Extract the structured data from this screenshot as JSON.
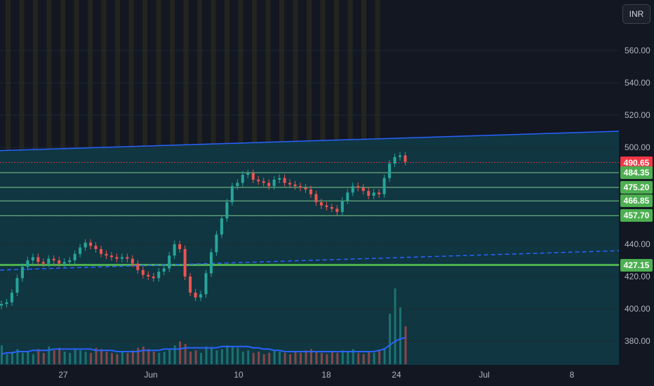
{
  "currency_button": "INR",
  "colors": {
    "background": "#121722",
    "channel_fill": "#0f3a44",
    "band_up": "#2a2a1c",
    "trendline": "#2962ff",
    "support_green": "#4caf50",
    "level_line": "#7fc98a",
    "up_candle": "#26a69a",
    "down_candle": "#ef5350",
    "volume_ma": "#2962ff",
    "current_price": "#f23645"
  },
  "price_labels": [
    {
      "price": 490.65,
      "text": "490.65",
      "color": "#f23645"
    },
    {
      "price": 484.35,
      "text": "484.35",
      "color": "#4caf50"
    },
    {
      "price": 475.2,
      "text": "475.20",
      "color": "#4caf50"
    },
    {
      "price": 466.85,
      "text": "466.85",
      "color": "#4caf50"
    },
    {
      "price": 457.7,
      "text": "457.70",
      "color": "#4caf50"
    },
    {
      "price": 427.15,
      "text": "427.15",
      "color": "#4caf50"
    }
  ],
  "chart_data": {
    "type": "candlestick",
    "y_axis": {
      "min": 370,
      "max": 580,
      "ticks": [
        "560.00",
        "540.00",
        "520.00",
        "500.00",
        "440.00",
        "420.00",
        "400.00",
        "380.00"
      ],
      "tick_values": [
        560,
        540,
        520,
        500,
        440,
        420,
        400,
        380
      ]
    },
    "x_axis": {
      "ticks": [
        {
          "label": "27",
          "day": 4
        },
        {
          "label": "Jun",
          "day": 9
        },
        {
          "label": "10",
          "day": 14
        },
        {
          "label": "18",
          "day": 19
        },
        {
          "label": "24",
          "day": 23
        },
        {
          "label": "Jul",
          "day": 28
        },
        {
          "label": "8",
          "day": 33
        }
      ]
    },
    "horizontal_levels": [
      484.35,
      475.2,
      466.85,
      457.7,
      427.15
    ],
    "current_price": 490.65,
    "upper_trendline": {
      "start": {
        "day": 0,
        "price": 498
      },
      "end": {
        "day": 36,
        "price": 510
      }
    },
    "lower_trendline": {
      "start": {
        "day": 0,
        "price": 424
      },
      "end": {
        "day": 36,
        "price": 436
      }
    },
    "closes": [
      403,
      404,
      410,
      419,
      426,
      430,
      432,
      429,
      428,
      431,
      430,
      428,
      429,
      430,
      434,
      438,
      441,
      439,
      437,
      434,
      433,
      432,
      431,
      432,
      431,
      428,
      424,
      421,
      420,
      419,
      423,
      425,
      433,
      440,
      437,
      420,
      410,
      407,
      409,
      422,
      435,
      446,
      456,
      466,
      476,
      478,
      483,
      484,
      480,
      479,
      478,
      476,
      480,
      481,
      478,
      477,
      476,
      475,
      474,
      471,
      466,
      464,
      463,
      462,
      460,
      467,
      472,
      476,
      475,
      473,
      470,
      472,
      471,
      481,
      490,
      494,
      495,
      491
    ],
    "volume": [
      15,
      8,
      10,
      12,
      9,
      10,
      8,
      12,
      9,
      14,
      11,
      13,
      10,
      9,
      12,
      11,
      10,
      9,
      13,
      12,
      10,
      9,
      8,
      10,
      9,
      11,
      13,
      14,
      12,
      10,
      9,
      10,
      12,
      15,
      18,
      16,
      10,
      11,
      9,
      14,
      13,
      11,
      12,
      15,
      14,
      13,
      10,
      11,
      9,
      10,
      8,
      9,
      11,
      10,
      9,
      8,
      10,
      9,
      11,
      12,
      10,
      9,
      8,
      10,
      9,
      11,
      10,
      12,
      9,
      8,
      10,
      9,
      11,
      13,
      40,
      60,
      45,
      30
    ],
    "volume_ma": [
      8,
      9,
      9,
      10,
      10,
      10,
      11,
      11,
      11,
      11,
      12,
      12,
      12,
      12,
      12,
      12,
      12,
      12,
      11,
      11,
      11,
      11,
      10,
      10,
      10,
      10,
      10,
      11,
      11,
      11,
      11,
      12,
      12,
      12,
      12,
      13,
      13,
      13,
      13,
      13,
      13,
      13,
      14,
      14,
      14,
      14,
      14,
      14,
      13,
      13,
      12,
      12,
      11,
      11,
      10,
      10,
      10,
      10,
      10,
      10,
      10,
      10,
      10,
      10,
      10,
      10,
      10,
      10,
      10,
      10,
      10,
      10,
      11,
      12,
      15,
      18,
      20,
      21
    ]
  }
}
